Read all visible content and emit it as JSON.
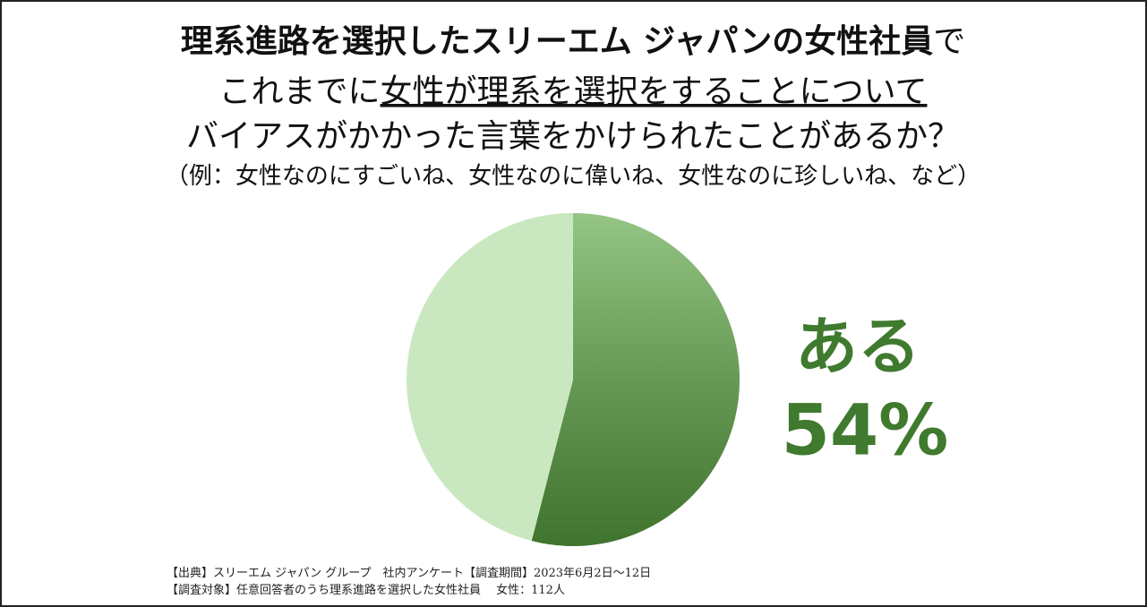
{
  "chart_data": {
    "type": "pie",
    "title": [
      [
        "理系進路を選択したスリーエム ジャパンの女性社員",
        "で"
      ],
      [
        "これまでに",
        "女性が理系を選択をすることについて"
      ],
      [
        "バイアスがかかった言葉をかけられたことがあるか？"
      ],
      [
        "（例：女性なのにすごいね、女性なのに偉いね、女性なのに珍しいね、など）"
      ]
    ],
    "categories": [
      "ある",
      null
    ],
    "values": [
      54,
      46
    ],
    "value_labels": [
      "54%",
      null
    ],
    "colors": [
      "#5ba642",
      "#c9e8c0"
    ],
    "notes": [
      "【出典】スリーエム ジャパン グループ　社内アンケート【調査期間】2023年6月2日～12日",
      "【調査対象】任意回答者のうち理系進路を選択した女性社員　 女性：112人"
    ]
  }
}
